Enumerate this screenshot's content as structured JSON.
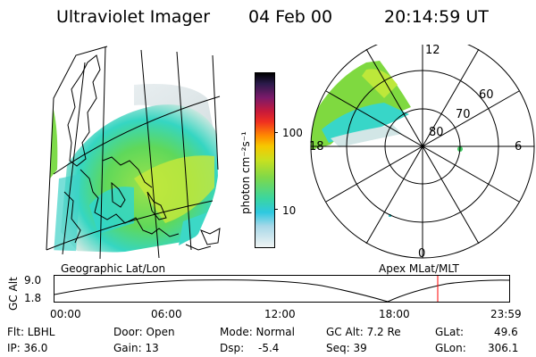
{
  "header": {
    "title": "Ultraviolet Imager",
    "date": "04 Feb 00",
    "time": "20:14:59 UT"
  },
  "colorbar": {
    "unit_label": "photon cm⁻²s⁻¹",
    "ticks": [
      "100",
      "10"
    ]
  },
  "polar_plot": {
    "mlt_labels": [
      "12",
      "18",
      "6",
      "0"
    ],
    "lat_labels": [
      "60",
      "70",
      "80"
    ]
  },
  "panel_labels": {
    "left": "Geographic Lat/Lon",
    "right": "Apex  MLat/MLT"
  },
  "altitude_plot": {
    "y_label": "GC Alt",
    "y_ticks": [
      "9.0",
      "1.8"
    ],
    "x_ticks": [
      "00:00",
      "06:00",
      "12:00",
      "18:00",
      "23:59"
    ],
    "marker_time": "20:14:59",
    "marker_color": "#ff0000"
  },
  "info": {
    "flt": "Flt: LBHL",
    "ip": "IP: 36.0",
    "door": "Door: Open",
    "gain": "Gain: 13",
    "mode": "Mode: Normal",
    "dsp_label": "Dsp:",
    "dsp_value": "-5.4",
    "gc_alt": "GC Alt: 7.2 Re",
    "seq": "Seq: 39",
    "glat_label": "GLat:",
    "glat_value": "49.6",
    "glon_label": "GLon:",
    "glon_value": "306.1"
  }
}
